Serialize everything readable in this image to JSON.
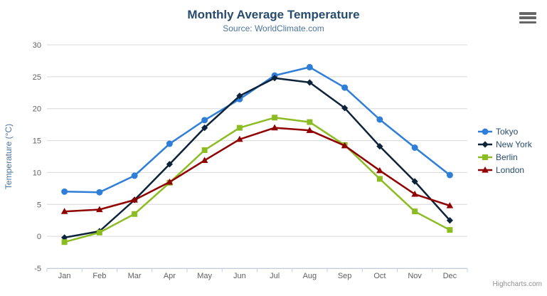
{
  "chart": {
    "title": "Monthly Average Temperature",
    "subtitle": "Source: WorldClimate.com",
    "credits": "Highcharts.com",
    "context_menu_icon": "hamburger-icon"
  },
  "colors": {
    "title": "#274b6d",
    "subtitle": "#4d759e",
    "axis_title": "#4d759e",
    "tick_label": "#606060",
    "gridline": "#d8d8d8",
    "axis_line": "#c0d0e0",
    "credits": "#909090",
    "tokyo": "#2f7ed8",
    "new_york": "#0d233a",
    "berlin": "#8bbc21",
    "london": "#910000"
  },
  "chart_data": {
    "type": "line",
    "title": "Monthly Average Temperature",
    "subtitle": "Source: WorldClimate.com",
    "xlabel": "",
    "ylabel": "Temperature (°C)",
    "categories": [
      "Jan",
      "Feb",
      "Mar",
      "Apr",
      "May",
      "Jun",
      "Jul",
      "Aug",
      "Sep",
      "Oct",
      "Nov",
      "Dec"
    ],
    "ylim": [
      -5,
      30
    ],
    "ytick_step": 5,
    "grid": true,
    "legend_position": "right",
    "series": [
      {
        "name": "Tokyo",
        "color": "#2f7ed8",
        "marker": "circle",
        "values": [
          7.0,
          6.9,
          9.5,
          14.5,
          18.2,
          21.5,
          25.2,
          26.5,
          23.3,
          18.3,
          13.9,
          9.6
        ]
      },
      {
        "name": "New York",
        "color": "#0d233a",
        "marker": "diamond",
        "values": [
          -0.2,
          0.8,
          5.7,
          11.3,
          17.0,
          22.0,
          24.8,
          24.1,
          20.1,
          14.1,
          8.6,
          2.5
        ]
      },
      {
        "name": "Berlin",
        "color": "#8bbc21",
        "marker": "square",
        "values": [
          -0.9,
          0.6,
          3.5,
          8.4,
          13.5,
          17.0,
          18.6,
          17.9,
          14.3,
          9.0,
          3.9,
          1.0
        ]
      },
      {
        "name": "London",
        "color": "#910000",
        "marker": "triangle",
        "values": [
          3.9,
          4.2,
          5.7,
          8.5,
          11.9,
          15.2,
          17.0,
          16.6,
          14.2,
          10.3,
          6.6,
          4.8
        ]
      }
    ]
  }
}
